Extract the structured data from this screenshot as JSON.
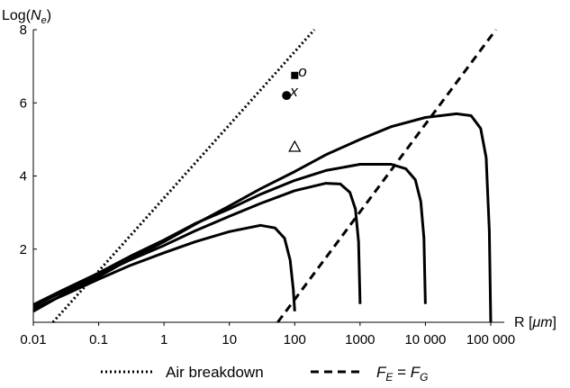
{
  "chart_data": {
    "type": "line",
    "title": "",
    "xlabel": "R [μm]",
    "ylabel": "Log(Ne)",
    "x_scale": "log",
    "xlim": [
      0.01,
      100000
    ],
    "ylim": [
      0,
      8
    ],
    "x_ticks": [
      0.01,
      0.1,
      1,
      10,
      100,
      1000,
      10000,
      100000
    ],
    "x_tick_labels": [
      "0.01",
      "0.1",
      "1",
      "10",
      "100",
      "1000",
      "10 000",
      "100 000"
    ],
    "y_ticks": [
      2,
      4,
      6,
      8
    ],
    "y_tick_labels": [
      "2",
      "4",
      "6",
      "8"
    ],
    "grid": false,
    "legend_position": "bottom",
    "series": [
      {
        "name": "Air breakdown",
        "style": "dotted",
        "points": [
          [
            0.02,
            0.0
          ],
          [
            200,
            8.0
          ]
        ]
      },
      {
        "name": "F_E = F_G",
        "style": "dashed",
        "points": [
          [
            55,
            0.0
          ],
          [
            120000,
            8.0
          ]
        ]
      },
      {
        "style": "solid",
        "points": [
          [
            0.01,
            0.38
          ],
          [
            0.03,
            0.75
          ],
          [
            0.1,
            1.18
          ],
          [
            0.3,
            1.55
          ],
          [
            1,
            1.9
          ],
          [
            3,
            2.2
          ],
          [
            10,
            2.48
          ],
          [
            30,
            2.65
          ],
          [
            50,
            2.58
          ],
          [
            70,
            2.3
          ],
          [
            85,
            1.7
          ],
          [
            95,
            0.9
          ],
          [
            100,
            0.3
          ]
        ]
      },
      {
        "style": "solid",
        "points": [
          [
            0.01,
            0.45
          ],
          [
            0.03,
            0.85
          ],
          [
            0.1,
            1.3
          ],
          [
            0.3,
            1.7
          ],
          [
            1,
            2.1
          ],
          [
            3,
            2.5
          ],
          [
            10,
            2.9
          ],
          [
            30,
            3.25
          ],
          [
            100,
            3.6
          ],
          [
            300,
            3.8
          ],
          [
            500,
            3.78
          ],
          [
            700,
            3.55
          ],
          [
            850,
            3.1
          ],
          [
            950,
            2.2
          ],
          [
            1000,
            0.5
          ]
        ]
      },
      {
        "style": "solid",
        "points": [
          [
            0.01,
            0.48
          ],
          [
            0.03,
            0.9
          ],
          [
            0.1,
            1.35
          ],
          [
            0.3,
            1.8
          ],
          [
            1,
            2.25
          ],
          [
            3,
            2.7
          ],
          [
            10,
            3.1
          ],
          [
            30,
            3.5
          ],
          [
            100,
            3.88
          ],
          [
            300,
            4.15
          ],
          [
            1000,
            4.32
          ],
          [
            3000,
            4.32
          ],
          [
            5000,
            4.2
          ],
          [
            7000,
            3.9
          ],
          [
            8500,
            3.3
          ],
          [
            9500,
            2.3
          ],
          [
            10000,
            0.5
          ]
        ]
      },
      {
        "style": "solid",
        "points": [
          [
            0.01,
            0.3
          ],
          [
            0.03,
            0.78
          ],
          [
            0.1,
            1.25
          ],
          [
            0.3,
            1.72
          ],
          [
            1,
            2.2
          ],
          [
            3,
            2.68
          ],
          [
            10,
            3.18
          ],
          [
            30,
            3.65
          ],
          [
            100,
            4.12
          ],
          [
            300,
            4.58
          ],
          [
            1000,
            5.0
          ],
          [
            3000,
            5.35
          ],
          [
            10000,
            5.6
          ],
          [
            30000,
            5.7
          ],
          [
            50000,
            5.65
          ],
          [
            70000,
            5.3
          ],
          [
            85000,
            4.5
          ],
          [
            95000,
            2.5
          ],
          [
            100000,
            0.0
          ]
        ]
      }
    ],
    "markers": [
      {
        "shape": "square",
        "filled": true,
        "label": "o",
        "x": 100,
        "y": 6.75
      },
      {
        "shape": "circle",
        "filled": true,
        "label": "x",
        "x": 75,
        "y": 6.2
      },
      {
        "shape": "triangle",
        "filled": false,
        "label": "",
        "x": 100,
        "y": 4.8
      }
    ],
    "legend": [
      {
        "label_main": "Air breakdown",
        "style": "dotted"
      },
      {
        "label_main": "F_E = F_G",
        "style": "dashed",
        "lhs": "F",
        "lhs_sub": "E",
        "eq": " = ",
        "rhs": "F",
        "rhs_sub": "G"
      }
    ]
  },
  "axis_title_x": "R [",
  "axis_title_x_unit": "μm",
  "axis_title_x_end": "]",
  "axis_title_y": "Log(",
  "axis_title_y_var": "N",
  "axis_title_y_sub": "e",
  "axis_title_y_end": ")"
}
